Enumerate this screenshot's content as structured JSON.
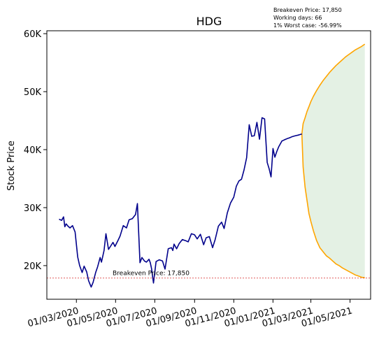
{
  "chart_data": {
    "type": "line",
    "title": "HDG",
    "xlabel": "",
    "ylabel": "Stock Price",
    "ylim": [
      14200,
      60500
    ],
    "x_ticks": [
      "01/03/2020",
      "01/05/2020",
      "01/07/2020",
      "01/09/2020",
      "01/11/2020",
      "01/01/2021",
      "01/03/2021",
      "01/05/2021"
    ],
    "y_ticks": [
      {
        "value": 20000,
        "label": "20K"
      },
      {
        "value": 30000,
        "label": "30K"
      },
      {
        "value": 40000,
        "label": "40K"
      },
      {
        "value": 50000,
        "label": "50K"
      },
      {
        "value": 60000,
        "label": "60K"
      }
    ],
    "info": {
      "breakeven": "Breakeven Price: 17,850",
      "working_days": "Working days: 66",
      "worst_case": "1% Worst case: -56.99%"
    },
    "breakeven_label": "Breakeven Price: 17,850",
    "breakeven_value": 17850,
    "grid": false,
    "colors": {
      "history": "#00008b",
      "forecast": "#ffa500",
      "band": "#e4f1e4",
      "breakeven": "#d62728"
    },
    "series": [
      {
        "role": "historical",
        "x": [
          "2020-02-03",
          "2020-02-07",
          "2020-02-10",
          "2020-02-12",
          "2020-02-14",
          "2020-02-17",
          "2020-02-20",
          "2020-02-24",
          "2020-02-28",
          "2020-03-03",
          "2020-03-06",
          "2020-03-10",
          "2020-03-13",
          "2020-03-17",
          "2020-03-20",
          "2020-03-24",
          "2020-03-27",
          "2020-03-31",
          "2020-04-03",
          "2020-04-07",
          "2020-04-09",
          "2020-04-13",
          "2020-04-16",
          "2020-04-20",
          "2020-04-23",
          "2020-04-27",
          "2020-04-30",
          "2020-05-05",
          "2020-05-08",
          "2020-05-13",
          "2020-05-18",
          "2020-05-22",
          "2020-05-27",
          "2020-06-01",
          "2020-06-04",
          "2020-06-08",
          "2020-06-11",
          "2020-06-15",
          "2020-06-18",
          "2020-06-22",
          "2020-06-24",
          "2020-06-26",
          "2020-06-29",
          "2020-07-03",
          "2020-07-08",
          "2020-07-13",
          "2020-07-17",
          "2020-07-22",
          "2020-07-27",
          "2020-07-29",
          "2020-07-31",
          "2020-08-04",
          "2020-08-08",
          "2020-08-13",
          "2020-08-18",
          "2020-08-22",
          "2020-08-27",
          "2020-09-01",
          "2020-09-05",
          "2020-09-10",
          "2020-09-15",
          "2020-09-19",
          "2020-09-24",
          "2020-09-29",
          "2020-10-03",
          "2020-10-08",
          "2020-10-13",
          "2020-10-17",
          "2020-10-22",
          "2020-10-27",
          "2020-11-01",
          "2020-11-05",
          "2020-11-09",
          "2020-11-13",
          "2020-11-17",
          "2020-11-21",
          "2020-11-25",
          "2020-11-29",
          "2020-12-03",
          "2020-12-07",
          "2020-12-11",
          "2020-12-15",
          "2020-12-19",
          "2020-12-23",
          "2020-12-26",
          "2020-12-29",
          "2021-01-01",
          "2021-01-04",
          "2021-01-07",
          "2021-01-10",
          "2021-01-13",
          "2021-01-15",
          "2021-01-17",
          "2021-01-19",
          "2021-01-21",
          "2021-01-23",
          "2021-01-26",
          "2021-01-28",
          "2021-01-30",
          "2021-02-02",
          "2021-02-05",
          "2021-02-09",
          "2021-02-12",
          "2021-02-15"
        ],
        "y": [
          28000,
          27800,
          28400,
          26700,
          27200,
          26800,
          26500,
          26900,
          25800,
          21500,
          20000,
          18800,
          19900,
          18900,
          17400,
          16300,
          17100,
          18800,
          19800,
          21400,
          20600,
          22600,
          25500,
          22800,
          23300,
          24000,
          23300,
          24400,
          25100,
          26900,
          26500,
          27900,
          28100,
          28800,
          30700,
          20500,
          21400,
          20800,
          20600,
          21100,
          20500,
          19500,
          17000,
          20700,
          21000,
          20800,
          19400,
          22900,
          23100,
          22600,
          23700,
          22900,
          23800,
          24500,
          24300,
          24100,
          25500,
          25300,
          24600,
          25400,
          23600,
          24800,
          25000,
          23100,
          24500,
          26800,
          27500,
          26400,
          29100,
          30800,
          31800,
          33700,
          34600,
          34900,
          36500,
          38600,
          44300,
          42300,
          42400,
          44700,
          41800,
          45500,
          45300,
          37800,
          36700,
          35300,
          40200,
          38700,
          39700,
          40500,
          41100,
          41500,
          41600,
          41700,
          41800,
          41900,
          42000,
          42100,
          42200,
          42300,
          42400,
          42500,
          42600,
          42700
        ]
      },
      {
        "role": "forecast-upper",
        "x": [
          "2021-02-15",
          "2021-02-17",
          "2021-02-20",
          "2021-02-23",
          "2021-02-26",
          "2021-03-01",
          "2021-03-05",
          "2021-03-10",
          "2021-03-15",
          "2021-03-20",
          "2021-03-25",
          "2021-03-30",
          "2021-04-04",
          "2021-04-09",
          "2021-04-14",
          "2021-04-19",
          "2021-04-24",
          "2021-04-29",
          "2021-05-04",
          "2021-05-09",
          "2021-05-14",
          "2021-05-19",
          "2021-05-24"
        ],
        "y": [
          42700,
          44500,
          45500,
          46600,
          47400,
          48300,
          49200,
          50200,
          51100,
          51900,
          52600,
          53300,
          53900,
          54500,
          55000,
          55500,
          56000,
          56400,
          56800,
          57200,
          57500,
          57800,
          58200
        ]
      },
      {
        "role": "forecast-lower",
        "x": [
          "2021-02-15",
          "2021-02-17",
          "2021-02-20",
          "2021-02-23",
          "2021-02-26",
          "2021-03-01",
          "2021-03-05",
          "2021-03-10",
          "2021-03-15",
          "2021-03-20",
          "2021-03-25",
          "2021-03-30",
          "2021-04-04",
          "2021-04-09",
          "2021-04-14",
          "2021-04-19",
          "2021-04-24",
          "2021-04-29",
          "2021-05-04",
          "2021-05-09",
          "2021-05-14",
          "2021-05-19",
          "2021-05-24"
        ],
        "y": [
          42700,
          37000,
          33500,
          31200,
          29000,
          27600,
          26000,
          24300,
          23100,
          22400,
          21700,
          21300,
          20800,
          20300,
          20000,
          19600,
          19300,
          19000,
          18700,
          18400,
          18200,
          18000,
          17900
        ]
      }
    ]
  }
}
